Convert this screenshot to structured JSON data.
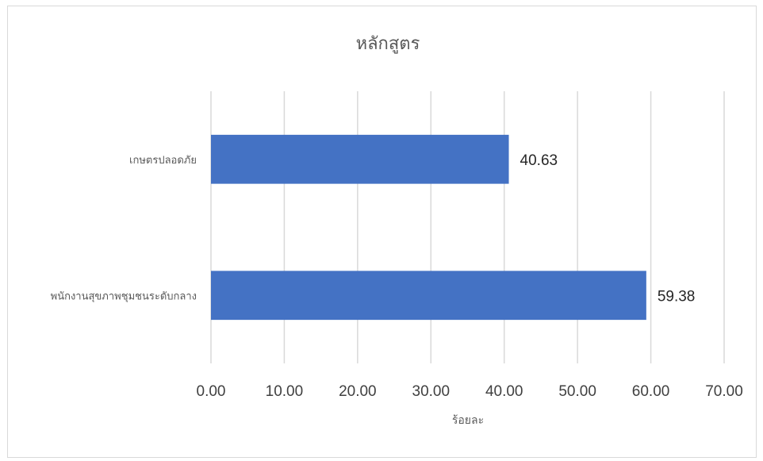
{
  "chart_data": {
    "type": "bar",
    "orientation": "horizontal",
    "title": "หลักสูตร",
    "categories": [
      "เกษตรปลอดภัย",
      "พนักงานสุขภาพชุมชนระดับกลาง"
    ],
    "values": [
      40.63,
      59.38
    ],
    "value_labels": [
      "40.63",
      "59.38"
    ],
    "xlabel": "ร้อยละ",
    "ylabel": "",
    "xlim": [
      0,
      70
    ],
    "xticks": [
      "0.00",
      "10.00",
      "20.00",
      "30.00",
      "40.00",
      "50.00",
      "60.00",
      "70.00"
    ],
    "grid": true,
    "bar_color": "#4472c4"
  }
}
